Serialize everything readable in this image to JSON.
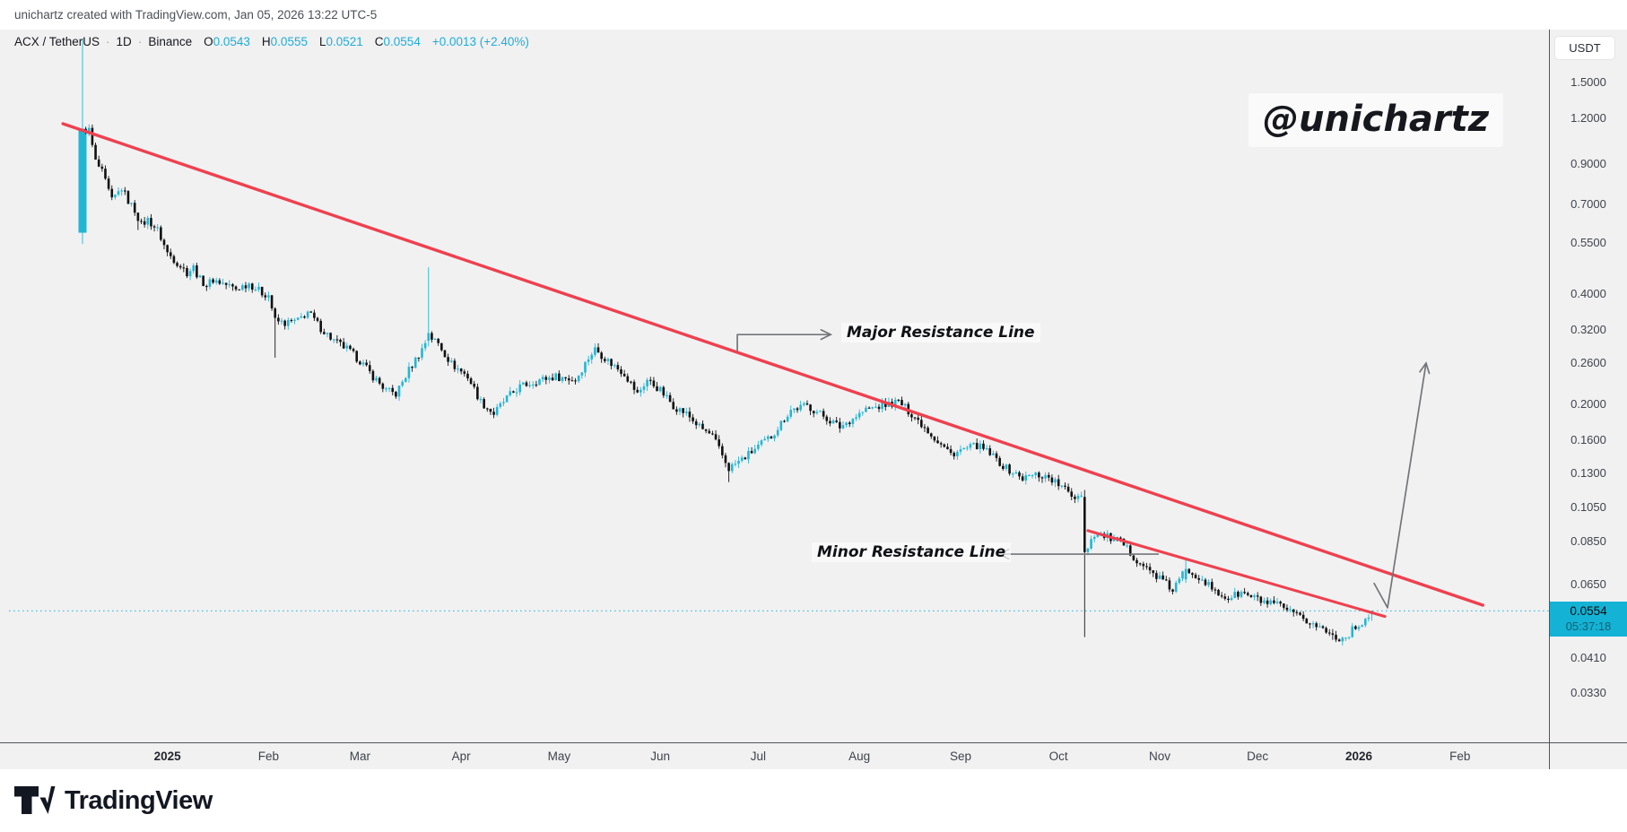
{
  "header": {
    "credit": "unichartz created with TradingView.com, Jan 05, 2026 13:22 UTC-5"
  },
  "legend": {
    "symbol": "ACX / TetherUS",
    "sep": "·",
    "interval": "1D",
    "exchange": "Binance",
    "o_label": "O",
    "o": "0.0543",
    "h_label": "H",
    "h": "0.0555",
    "l_label": "L",
    "l": "0.0521",
    "c_label": "C",
    "c": "0.0554",
    "change": "+0.0013 (+2.40%)"
  },
  "watermark": {
    "text": "@unichartz"
  },
  "annotations": {
    "major": {
      "label": "Major Resistance Line"
    },
    "minor": {
      "label": "Minor Resistance Line"
    }
  },
  "price_axis": {
    "currency": "USDT",
    "ticks": [
      "1.5000",
      "1.2000",
      "0.9000",
      "0.7000",
      "0.5500",
      "0.4000",
      "0.3200",
      "0.2600",
      "0.2000",
      "0.1600",
      "0.1300",
      "0.1050",
      "0.0850",
      "0.0650",
      "0.0410",
      "0.0330"
    ],
    "last_price": "0.0554",
    "countdown": "05:37:18"
  },
  "time_axis": {
    "ticks": [
      {
        "label": "2025",
        "day": 26,
        "bold": true
      },
      {
        "label": "Feb",
        "day": 57
      },
      {
        "label": "Mar",
        "day": 85
      },
      {
        "label": "Apr",
        "day": 116
      },
      {
        "label": "May",
        "day": 146
      },
      {
        "label": "Jun",
        "day": 177
      },
      {
        "label": "Jul",
        "day": 207
      },
      {
        "label": "Aug",
        "day": 238
      },
      {
        "label": "Sep",
        "day": 269
      },
      {
        "label": "Oct",
        "day": 299
      },
      {
        "label": "Nov",
        "day": 330
      },
      {
        "label": "Dec",
        "day": 360
      },
      {
        "label": "2026",
        "day": 391,
        "bold": true
      },
      {
        "label": "Feb",
        "day": 422
      }
    ]
  },
  "footer": {
    "brand": "TradingView"
  },
  "colors": {
    "up": "#23b6d4",
    "down": "#111111",
    "trendline": "#ef404e",
    "badge_bg": "#14b2d4",
    "accent_text": "#1fadd6",
    "bg_chart": "#f1f1f2",
    "axis_border": "#53555c",
    "arrow": "#737578"
  },
  "chart_data": {
    "type": "candlestick",
    "symbol": "ACX/USDT",
    "timeframe": "1D",
    "exchange": "Binance",
    "scale": "log",
    "current_candle": {
      "open": 0.0543,
      "high": 0.0555,
      "low": 0.0521,
      "close": 0.0554,
      "change": 0.0013,
      "change_pct": 2.4
    },
    "current_price": 0.0554,
    "y_range": {
      "top": 2.1,
      "bottom": 0.0243
    },
    "x_axis": {
      "start_date": "2024-12-06",
      "end_date": "2026-01-05",
      "days": 396
    },
    "waypoints": [
      [
        0,
        1.13
      ],
      [
        2,
        1.12
      ],
      [
        4,
        0.92
      ],
      [
        6,
        0.86
      ],
      [
        9,
        0.72
      ],
      [
        12,
        0.78
      ],
      [
        14,
        0.72
      ],
      [
        16,
        0.68
      ],
      [
        18,
        0.62
      ],
      [
        20,
        0.64
      ],
      [
        23,
        0.6
      ],
      [
        26,
        0.52
      ],
      [
        29,
        0.49
      ],
      [
        32,
        0.46
      ],
      [
        34,
        0.475
      ],
      [
        36,
        0.44
      ],
      [
        38,
        0.425
      ],
      [
        40,
        0.44
      ],
      [
        43,
        0.43
      ],
      [
        47,
        0.415
      ],
      [
        51,
        0.43
      ],
      [
        55,
        0.405
      ],
      [
        57,
        0.4
      ],
      [
        59,
        0.34
      ],
      [
        62,
        0.335
      ],
      [
        66,
        0.34
      ],
      [
        69,
        0.36
      ],
      [
        73,
        0.325
      ],
      [
        77,
        0.3
      ],
      [
        81,
        0.285
      ],
      [
        85,
        0.265
      ],
      [
        89,
        0.24
      ],
      [
        93,
        0.22
      ],
      [
        96,
        0.215
      ],
      [
        100,
        0.25
      ],
      [
        104,
        0.285
      ],
      [
        106,
        0.31
      ],
      [
        109,
        0.295
      ],
      [
        113,
        0.26
      ],
      [
        118,
        0.24
      ],
      [
        122,
        0.205
      ],
      [
        126,
        0.19
      ],
      [
        130,
        0.21
      ],
      [
        134,
        0.225
      ],
      [
        140,
        0.235
      ],
      [
        145,
        0.24
      ],
      [
        151,
        0.235
      ],
      [
        155,
        0.27
      ],
      [
        157,
        0.285
      ],
      [
        162,
        0.26
      ],
      [
        166,
        0.245
      ],
      [
        170,
        0.215
      ],
      [
        173,
        0.235
      ],
      [
        177,
        0.22
      ],
      [
        181,
        0.2
      ],
      [
        185,
        0.19
      ],
      [
        189,
        0.175
      ],
      [
        193,
        0.165
      ],
      [
        198,
        0.135
      ],
      [
        203,
        0.145
      ],
      [
        207,
        0.155
      ],
      [
        211,
        0.165
      ],
      [
        217,
        0.195
      ],
      [
        222,
        0.2
      ],
      [
        228,
        0.185
      ],
      [
        232,
        0.175
      ],
      [
        236,
        0.185
      ],
      [
        240,
        0.195
      ],
      [
        245,
        0.2
      ],
      [
        250,
        0.205
      ],
      [
        254,
        0.19
      ],
      [
        258,
        0.175
      ],
      [
        262,
        0.16
      ],
      [
        266,
        0.148
      ],
      [
        270,
        0.152
      ],
      [
        274,
        0.156
      ],
      [
        278,
        0.148
      ],
      [
        283,
        0.135
      ],
      [
        288,
        0.127
      ],
      [
        292,
        0.13
      ],
      [
        296,
        0.128
      ],
      [
        300,
        0.12
      ],
      [
        304,
        0.113
      ],
      [
        306,
        0.116
      ],
      [
        307,
        0.08
      ],
      [
        310,
        0.09
      ],
      [
        314,
        0.088
      ],
      [
        318,
        0.085
      ],
      [
        322,
        0.078
      ],
      [
        326,
        0.072
      ],
      [
        330,
        0.068
      ],
      [
        334,
        0.063
      ],
      [
        338,
        0.072
      ],
      [
        343,
        0.068
      ],
      [
        347,
        0.062
      ],
      [
        351,
        0.06
      ],
      [
        355,
        0.062
      ],
      [
        359,
        0.06
      ],
      [
        363,
        0.058
      ],
      [
        367,
        0.057
      ],
      [
        371,
        0.054
      ],
      [
        375,
        0.052
      ],
      [
        379,
        0.05
      ],
      [
        383,
        0.0475
      ],
      [
        386,
        0.0465
      ],
      [
        390,
        0.05
      ],
      [
        393,
        0.0525
      ],
      [
        395,
        0.0554
      ]
    ],
    "special_candles": {
      "0": {
        "o": 0.59,
        "h": 1.99,
        "l": 0.55,
        "c": 1.13,
        "w": 9
      },
      "106": {
        "o": 0.3,
        "h": 0.475,
        "l": 0.29,
        "c": 0.315
      },
      "307": {
        "o": 0.113,
        "h": 0.118,
        "l": 0.047,
        "c": 0.08
      },
      "338": {
        "o": 0.0675,
        "h": 0.0765,
        "l": 0.066,
        "c": 0.072
      },
      "395": {
        "o": 0.0543,
        "h": 0.0555,
        "l": 0.0521,
        "c": 0.0554
      }
    },
    "wick_overrides": {
      "17": 0.6,
      "59": 0.27,
      "198": 0.124,
      "383": 0.0462
    },
    "trendlines": [
      {
        "name": "Major Resistance Line",
        "from": {
          "day": -6,
          "price": 1.167
        },
        "to": {
          "day": 429,
          "price": 0.0574
        }
      },
      {
        "name": "Minor Resistance Line",
        "from": {
          "day": 308,
          "price": 0.0915
        },
        "to": {
          "day": 399,
          "price": 0.0535
        }
      }
    ],
    "callouts": {
      "major": {
        "points": [
          [
            200.6,
            0.281
          ],
          [
            200.6,
            0.312
          ],
          [
            229.2,
            0.312
          ]
        ]
      },
      "minor": {
        "points": [
          [
            329.7,
            0.079
          ],
          [
            280.8,
            0.079
          ]
        ]
      }
    },
    "projection_arrow": {
      "points": [
        [
          395.6,
          0.066
        ],
        [
          399.8,
          0.0565
        ],
        [
          411.6,
          0.261
        ]
      ]
    }
  }
}
